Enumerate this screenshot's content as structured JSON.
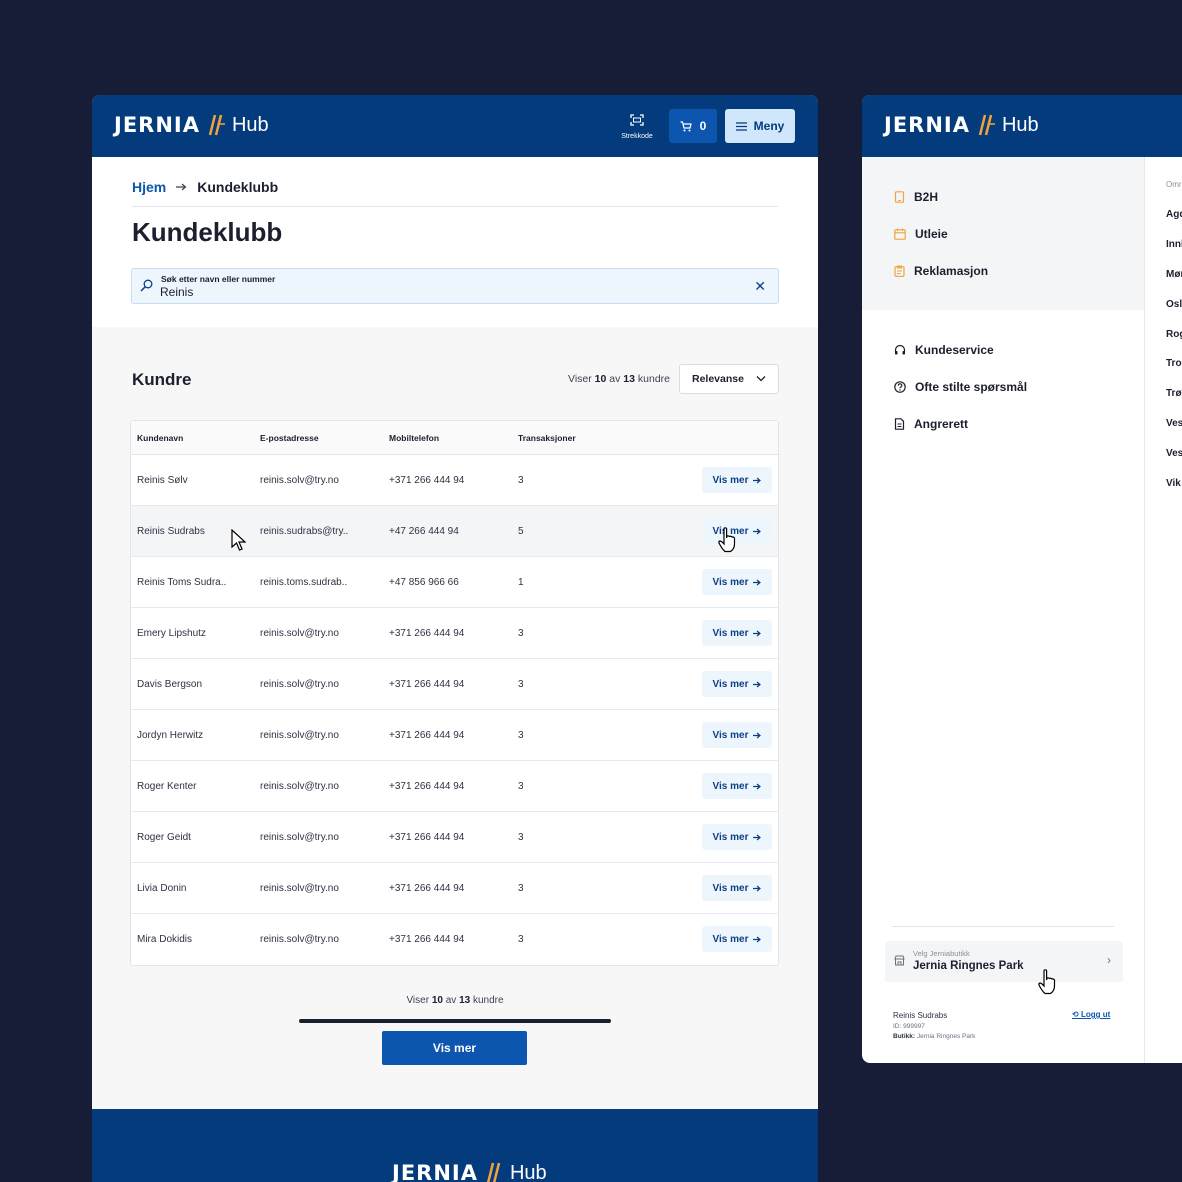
{
  "app": {
    "brand": "JERNIA",
    "hub": "Hub"
  },
  "header": {
    "barcode_label": "Strekkode",
    "cart_count": "0",
    "menu_label": "Meny"
  },
  "breadcrumb": {
    "home": "Hjem",
    "current": "Kundeklubb"
  },
  "page_title": "Kundeklubb",
  "search": {
    "label": "Søk etter navn eller nummer",
    "value": "Reinis"
  },
  "customers": {
    "title": "Kundre",
    "count_prefix": "Viser",
    "shown": "10",
    "count_mid": "av",
    "total": "13",
    "count_suffix": "kundre",
    "sort_label": "Relevanse",
    "columns": [
      "Kundenavn",
      "E-postadresse",
      "Mobiltelefon",
      "Transaksjoner"
    ],
    "action_label": "Vis mer",
    "rows": [
      {
        "name": "Reinis Sølv",
        "email": "reinis.solv@try.no",
        "phone": "+371 266 444 94",
        "tx": "3"
      },
      {
        "name": "Reinis Sudrabs",
        "email": "reinis.sudrabs@try..",
        "phone": "+47 266 444 94",
        "tx": "5"
      },
      {
        "name": "Reinis Toms Sudra..",
        "email": "reinis.toms.sudrab..",
        "phone": "+47 856 966 66",
        "tx": "1"
      },
      {
        "name": "Emery Lipshutz",
        "email": "reinis.solv@try.no",
        "phone": "+371 266 444 94",
        "tx": "3"
      },
      {
        "name": "Davis Bergson",
        "email": "reinis.solv@try.no",
        "phone": "+371 266 444 94",
        "tx": "3"
      },
      {
        "name": "Jordyn Herwitz",
        "email": "reinis.solv@try.no",
        "phone": "+371 266 444 94",
        "tx": "3"
      },
      {
        "name": "Roger Kenter",
        "email": "reinis.solv@try.no",
        "phone": "+371 266 444 94",
        "tx": "3"
      },
      {
        "name": "Roger Geidt",
        "email": "reinis.solv@try.no",
        "phone": "+371 266 444 94",
        "tx": "3"
      },
      {
        "name": "Livia Donin",
        "email": "reinis.solv@try.no",
        "phone": "+371 266 444 94",
        "tx": "3"
      },
      {
        "name": "Mira Dokidis",
        "email": "reinis.solv@try.no",
        "phone": "+371 266 444 94",
        "tx": "3"
      }
    ],
    "load_more": "Vis mer"
  },
  "side_menu": {
    "primary": [
      {
        "label": "B2H",
        "icon": "tablet-icon"
      },
      {
        "label": "Utleie",
        "icon": "calendar-icon"
      },
      {
        "label": "Reklamasjon",
        "icon": "clipboard-icon"
      }
    ],
    "secondary": [
      {
        "label": "Kundeservice",
        "icon": "headset-icon"
      },
      {
        "label": "Ofte stilte spørsmål",
        "icon": "question-icon"
      },
      {
        "label": "Angrerett",
        "icon": "document-icon"
      }
    ],
    "region_header": "Omr",
    "regions": [
      "Agd",
      "Innl",
      "Møn",
      "Osl",
      "Rog",
      "Tro",
      "Trø",
      "Ves",
      "Ves",
      "Vik"
    ],
    "store": {
      "label": "Velg Jerniabutikk",
      "name": "Jernia Ringnes Park"
    },
    "user": {
      "name": "Reinis Sudrabs",
      "id_label": "ID:",
      "id": "999997",
      "shop_label": "Butikk:",
      "shop": "Jernia Ringnes Park",
      "logout": "Logg ut"
    }
  },
  "colors": {
    "navy": "#043b7d",
    "primary": "#0c56b0",
    "accent": "#f2a33a",
    "background": "#171d36"
  }
}
